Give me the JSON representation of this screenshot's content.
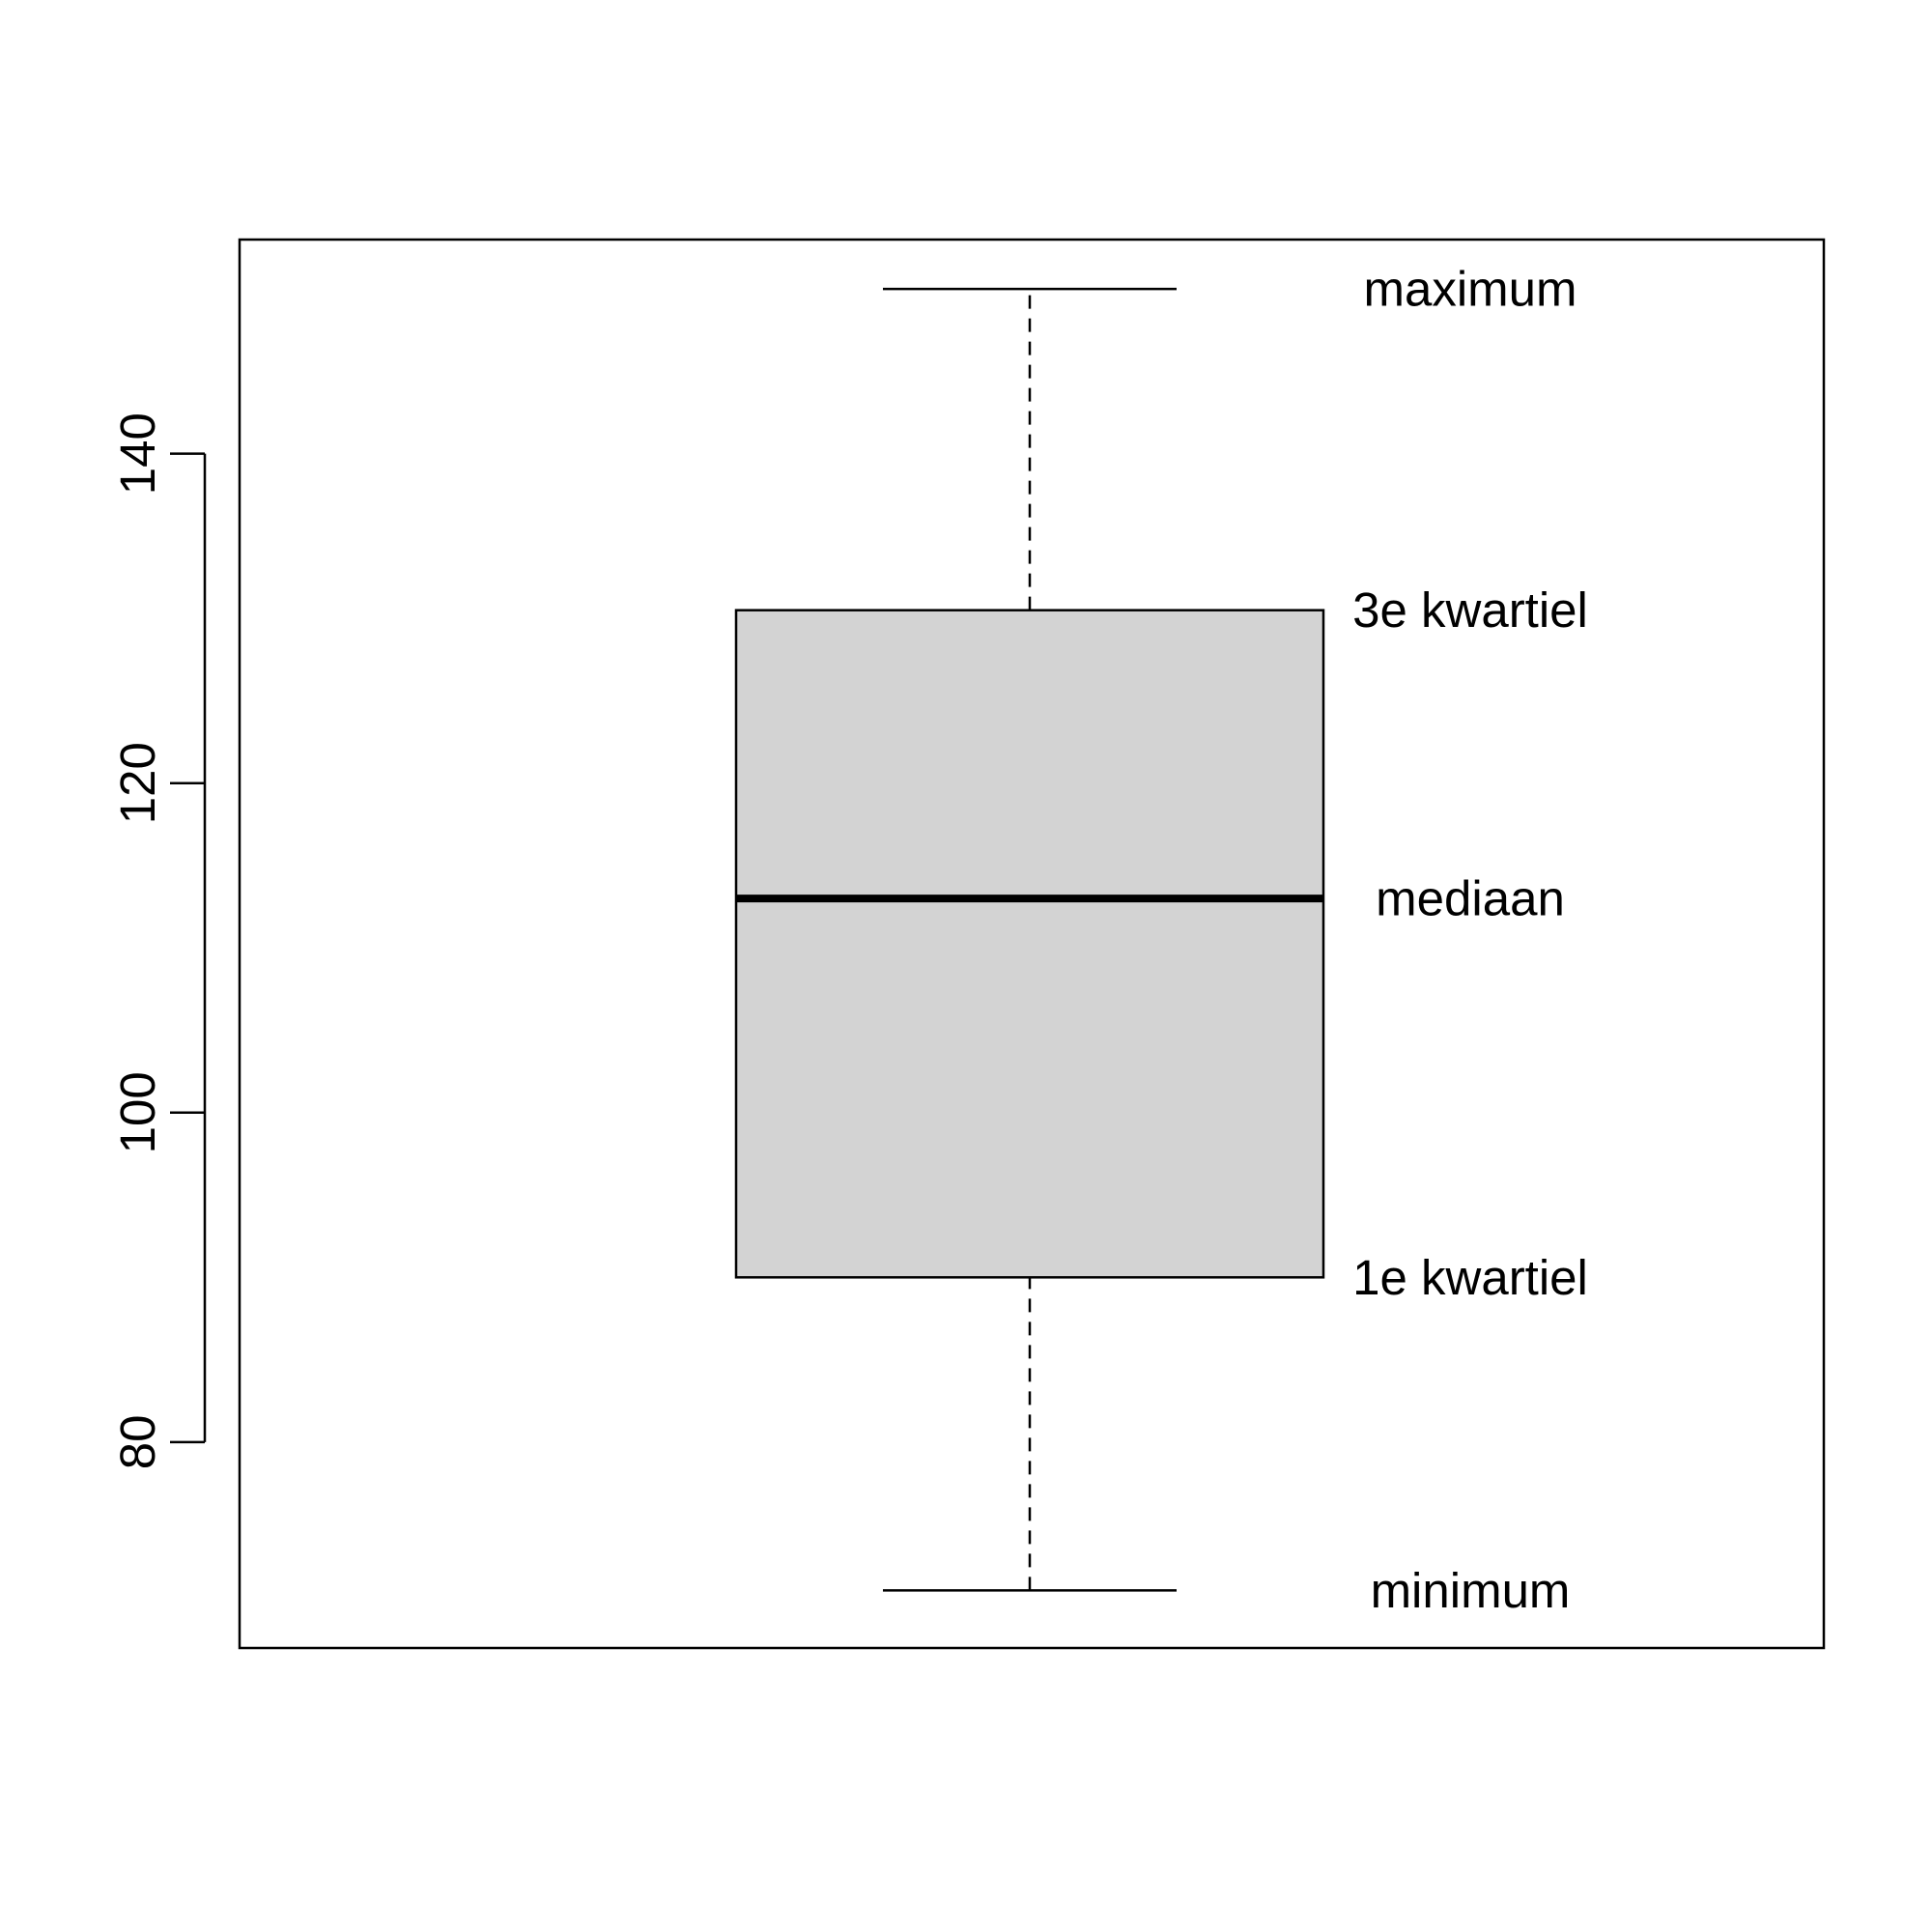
{
  "chart_data": {
    "type": "boxplot",
    "title": "",
    "xlabel": "",
    "ylabel": "",
    "ylim": [
      67.5,
      153
    ],
    "yticks": [
      80,
      100,
      120,
      140
    ],
    "grid": false,
    "box": {
      "min": 71,
      "q1": 90,
      "median": 113,
      "q3": 130.5,
      "max": 150,
      "fill": "#d3d3d3",
      "stroke": "#000000"
    },
    "annotations": [
      {
        "key": "max",
        "label": "maximum"
      },
      {
        "key": "q3",
        "label": "3e kwartiel"
      },
      {
        "key": "median",
        "label": "mediaan"
      },
      {
        "key": "q1",
        "label": "1e kwartiel"
      },
      {
        "key": "min",
        "label": "minimum"
      }
    ]
  }
}
